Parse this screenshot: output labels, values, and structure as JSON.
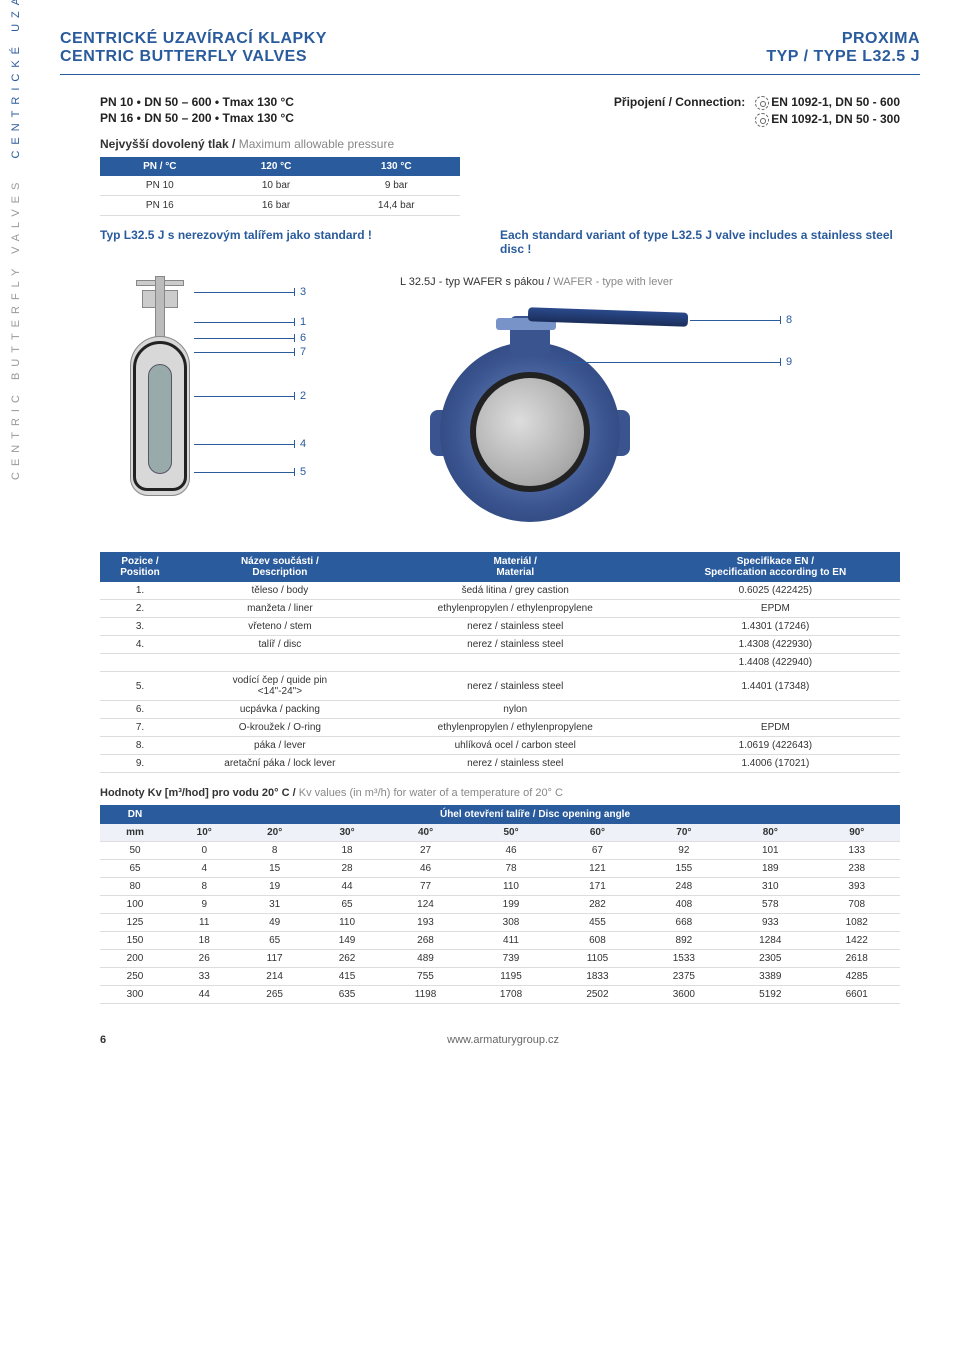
{
  "header": {
    "left1": "CENTRICKÉ UZAVÍRACÍ KLAPKY",
    "left2": "CENTRIC BUTTERFLY VALVES",
    "right1": "PROXIMA",
    "right2": "TYP / TYPE L32.5 J"
  },
  "specs": {
    "l1": "PN 10 • DN 50 – 600 • Tmax 130 °C",
    "l2": "PN 16 • DN 50 – 200 • Tmax 130 °C",
    "conn_label": "Připojení / Connection:",
    "c1": "EN 1092-1, DN 50 - 600",
    "c2": "EN 1092-1, DN 50 - 300"
  },
  "pressure": {
    "label_cz": "Nejvyšší dovolený tlak / ",
    "label_en": "Maximum allowable pressure",
    "cols": [
      "PN / °C",
      "120 °C",
      "130 °C"
    ],
    "rows": [
      [
        "PN 10",
        "10 bar",
        "9 bar"
      ],
      [
        "PN 16",
        "16 bar",
        "14,4 bar"
      ]
    ]
  },
  "standard": {
    "cz": "Typ L32.5 J s nerezovým talířem jako standard !",
    "en": "Each standard variant of type L32.5 J valve includes a stainless steel disc !"
  },
  "side": {
    "grey": "CENTRIC BUTTERFLY VALVES",
    "blue": "CENTRICKÉ UZAVÍRACÍ KLAPKY"
  },
  "callouts_left": [
    "3",
    "1",
    "6",
    "7",
    "2",
    "4",
    "5"
  ],
  "callouts_right": [
    "8",
    "9"
  ],
  "photo_caption_cz": "L 32.5J - typ WAFER s pákou / ",
  "photo_caption_en": "WAFER - type with lever",
  "parts": {
    "head": [
      "Pozice / Position",
      "Název součásti /\nDescription",
      "Materiál /\nMaterial",
      "Specifikace EN /\nSpecification according to EN"
    ],
    "rows": [
      [
        "1.",
        "těleso / body",
        "šedá litina / grey castion",
        "0.6025 (422425)"
      ],
      [
        "2.",
        "manžeta / liner",
        "ethylenpropylen / ethylenpropylene",
        "EPDM"
      ],
      [
        "3.",
        "vřeteno / stem",
        "nerez / stainless steel",
        "1.4301 (17246)"
      ],
      [
        "4.",
        "talíř / disc",
        "nerez / stainless steel",
        "1.4308 (422930)"
      ],
      [
        "",
        "",
        "",
        "1.4408 (422940)"
      ],
      [
        "5.",
        "vodící čep / quide pin\n<14\"-24\">",
        "nerez  / stainless steel",
        "1.4401 (17348)"
      ],
      [
        "6.",
        "ucpávka / packing",
        "nylon",
        ""
      ],
      [
        "7.",
        "O-kroužek / O-ring",
        "ethylenpropylen / ethylenpropylene",
        "EPDM"
      ],
      [
        "8.",
        "páka / lever",
        "uhlíková ocel / carbon steel",
        "1.0619 (422643)"
      ],
      [
        "9.",
        "aretační páka / lock lever",
        "nerez / stainless steel",
        "1.4006 (17021)"
      ]
    ]
  },
  "kv": {
    "label_cz": "Hodnoty Kv [m³/hod] pro vodu 20° C / ",
    "label_en": "Kv values (in m³/h) for water of a temperature of 20° C",
    "head1": "DN",
    "head2": "Úhel otevření talíře / Disc opening angle",
    "cols": [
      "mm",
      "10°",
      "20°",
      "30°",
      "40°",
      "50°",
      "60°",
      "70°",
      "80°",
      "90°"
    ],
    "rows": [
      [
        "50",
        "0",
        "8",
        "18",
        "27",
        "46",
        "67",
        "92",
        "101",
        "133"
      ],
      [
        "65",
        "4",
        "15",
        "28",
        "46",
        "78",
        "121",
        "155",
        "189",
        "238"
      ],
      [
        "80",
        "8",
        "19",
        "44",
        "77",
        "110",
        "171",
        "248",
        "310",
        "393"
      ],
      [
        "100",
        "9",
        "31",
        "65",
        "124",
        "199",
        "282",
        "408",
        "578",
        "708"
      ],
      [
        "125",
        "11",
        "49",
        "110",
        "193",
        "308",
        "455",
        "668",
        "933",
        "1082"
      ],
      [
        "150",
        "18",
        "65",
        "149",
        "268",
        "411",
        "608",
        "892",
        "1284",
        "1422"
      ],
      [
        "200",
        "26",
        "117",
        "262",
        "489",
        "739",
        "1105",
        "1533",
        "2305",
        "2618"
      ],
      [
        "250",
        "33",
        "214",
        "415",
        "755",
        "1195",
        "1833",
        "2375",
        "3389",
        "4285"
      ],
      [
        "300",
        "44",
        "265",
        "635",
        "1198",
        "1708",
        "2502",
        "3600",
        "5192",
        "6601"
      ]
    ]
  },
  "footer": {
    "page": "6",
    "url": "www.armaturygroup.cz"
  }
}
